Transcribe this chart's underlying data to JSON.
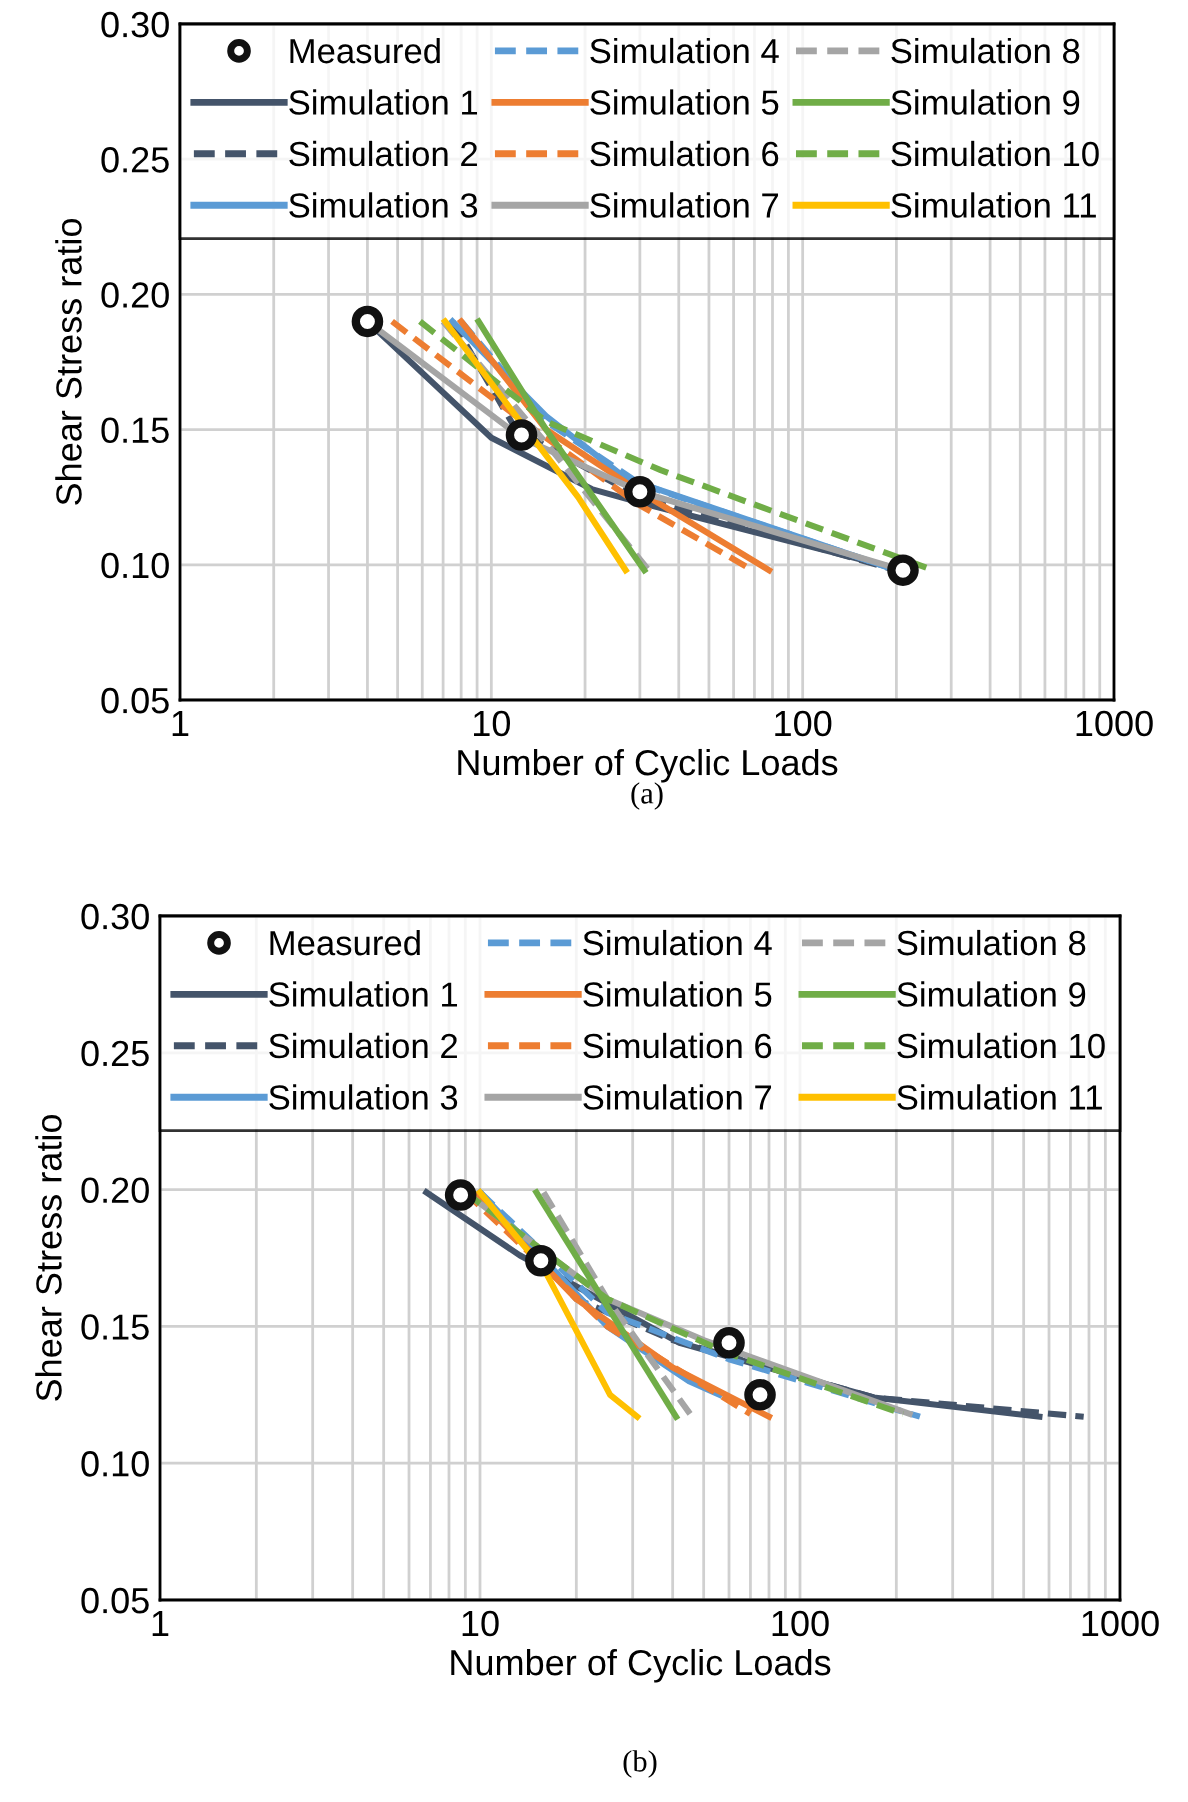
{
  "chart_data": [
    {
      "type": "line",
      "xlabel": "Number of Cyclic Loads",
      "ylabel": "Shear Stress ratio",
      "annotations": [
        "(a)"
      ],
      "log": "x",
      "grid": true,
      "legend": "top",
      "xlim": [
        1,
        1000
      ],
      "xticks": [
        1,
        10,
        100,
        1000
      ],
      "ylim": [
        0.05,
        0.3
      ],
      "yticks": [
        {
          "value": 0.05,
          "label": "0.05"
        },
        {
          "value": 0.1,
          "label": "0.10"
        },
        {
          "value": 0.15,
          "label": "0.15"
        },
        {
          "value": 0.2,
          "label": "0.20"
        },
        {
          "value": 0.25,
          "label": "0.25"
        },
        {
          "value": 0.3,
          "label": "0.30"
        }
      ],
      "series": [
        {
          "name": "Measured",
          "type": "scatter",
          "marker": "circle",
          "color": "#111111",
          "x": [
            4,
            12.5,
            30,
            210
          ],
          "values": [
            0.19,
            0.148,
            0.127,
            0.098
          ]
        },
        {
          "name": "Simulation 1",
          "color": "#44546a",
          "line_style": "solid",
          "x": [
            4,
            10,
            21,
            30,
            210
          ],
          "values": [
            0.19,
            0.147,
            0.128,
            0.123,
            0.098
          ]
        },
        {
          "name": "Simulation 2",
          "color": "#44546a",
          "line_style": "dashed",
          "x": [
            7.5,
            12,
            30,
            200
          ],
          "values": [
            0.19,
            0.15,
            0.125,
            0.098
          ]
        },
        {
          "name": "Simulation 3",
          "color": "#5b9bd5",
          "line_style": "solid",
          "x": [
            7.5,
            15,
            27,
            200
          ],
          "values": [
            0.19,
            0.155,
            0.132,
            0.098
          ]
        },
        {
          "name": "Simulation 4",
          "color": "#5b9bd5",
          "line_style": "dashed",
          "x": [
            8,
            15,
            30,
            200
          ],
          "values": [
            0.19,
            0.153,
            0.13,
            0.098
          ]
        },
        {
          "name": "Simulation 5",
          "color": "#ed7d31",
          "line_style": "solid",
          "x": [
            8,
            15,
            30,
            78
          ],
          "values": [
            0.19,
            0.15,
            0.127,
            0.098
          ]
        },
        {
          "name": "Simulation 6",
          "color": "#ed7d31",
          "line_style": "dashed",
          "x": [
            4.8,
            12,
            30,
            69
          ],
          "values": [
            0.19,
            0.155,
            0.122,
            0.098
          ]
        },
        {
          "name": "Simulation 7",
          "color": "#a5a5a5",
          "line_style": "solid",
          "x": [
            4,
            12.5,
            30,
            210
          ],
          "values": [
            0.19,
            0.147,
            0.127,
            0.098
          ]
        },
        {
          "name": "Simulation 8",
          "color": "#a5a5a5",
          "line_style": "dashed",
          "x": [
            7,
            15,
            32
          ],
          "values": [
            0.19,
            0.145,
            0.098
          ]
        },
        {
          "name": "Simulation 9",
          "color": "#70ad47",
          "line_style": "solid",
          "x": [
            9.1,
            15,
            31
          ],
          "values": [
            0.19,
            0.15,
            0.098
          ]
        },
        {
          "name": "Simulation 10",
          "color": "#70ad47",
          "line_style": "dashed",
          "x": [
            5.9,
            15,
            35,
            263
          ],
          "values": [
            0.19,
            0.153,
            0.135,
            0.098
          ]
        },
        {
          "name": "Simulation 11",
          "color": "#ffc000",
          "line_style": "solid",
          "x": [
            7.1,
            12,
            19,
            27
          ],
          "values": [
            0.19,
            0.155,
            0.125,
            0.098
          ]
        }
      ]
    },
    {
      "type": "line",
      "xlabel": "Number of Cyclic Loads",
      "ylabel": "Shear Stress ratio",
      "annotations": [
        "(b)"
      ],
      "log": "x",
      "grid": true,
      "legend": "top",
      "xlim": [
        1,
        1000
      ],
      "xticks": [
        1,
        10,
        100,
        1000
      ],
      "ylim": [
        0.05,
        0.3
      ],
      "yticks": [
        {
          "value": 0.05,
          "label": "0.05"
        },
        {
          "value": 0.1,
          "label": "0.10"
        },
        {
          "value": 0.15,
          "label": "0.15"
        },
        {
          "value": 0.2,
          "label": "0.20"
        },
        {
          "value": 0.25,
          "label": "0.25"
        },
        {
          "value": 0.3,
          "label": "0.30"
        }
      ],
      "series": [
        {
          "name": "Measured",
          "type": "scatter",
          "marker": "circle",
          "color": "#111111",
          "x": [
            8.7,
            15.5,
            60,
            75
          ],
          "values": [
            0.198,
            0.174,
            0.144,
            0.125
          ]
        },
        {
          "name": "Simulation 1",
          "color": "#44546a",
          "line_style": "solid",
          "x": [
            6.8,
            13.3,
            42,
            170,
            560
          ],
          "values": [
            0.199,
            0.176,
            0.144,
            0.124,
            0.117
          ]
        },
        {
          "name": "Simulation 2",
          "color": "#44546a",
          "line_style": "dashed",
          "x": [
            10,
            20,
            40,
            170,
            770
          ],
          "values": [
            0.199,
            0.16,
            0.145,
            0.124,
            0.117
          ]
        },
        {
          "name": "Simulation 3",
          "color": "#5b9bd5",
          "line_style": "solid",
          "x": [
            10,
            25,
            45,
            56
          ],
          "values": [
            0.199,
            0.15,
            0.13,
            0.125
          ]
        },
        {
          "name": "Simulation 4",
          "color": "#5b9bd5",
          "line_style": "dashed",
          "x": [
            10,
            25,
            60,
            237
          ],
          "values": [
            0.199,
            0.155,
            0.138,
            0.117
          ]
        },
        {
          "name": "Simulation 5",
          "color": "#ed7d31",
          "line_style": "solid",
          "x": [
            9.5,
            20,
            40,
            80
          ],
          "values": [
            0.199,
            0.16,
            0.135,
            0.117
          ]
        },
        {
          "name": "Simulation 6",
          "color": "#ed7d31",
          "line_style": "dashed",
          "x": [
            9,
            25,
            70
          ],
          "values": [
            0.199,
            0.15,
            0.118
          ]
        },
        {
          "name": "Simulation 7",
          "color": "#a5a5a5",
          "line_style": "solid",
          "x": [
            9,
            25,
            50,
            150,
            220
          ],
          "values": [
            0.199,
            0.16,
            0.145,
            0.125,
            0.118
          ]
        },
        {
          "name": "Simulation 8",
          "color": "#a5a5a5",
          "line_style": "dashed",
          "x": [
            15.8,
            25,
            46
          ],
          "values": [
            0.199,
            0.16,
            0.117
          ]
        },
        {
          "name": "Simulation 9",
          "color": "#70ad47",
          "line_style": "solid",
          "x": [
            15,
            41
          ],
          "values": [
            0.199,
            0.117
          ]
        },
        {
          "name": "Simulation 10",
          "color": "#70ad47",
          "line_style": "dashed",
          "x": [
            9,
            25,
            60,
            210
          ],
          "values": [
            0.199,
            0.16,
            0.14,
            0.118
          ]
        },
        {
          "name": "Simulation 11",
          "color": "#ffc000",
          "line_style": "solid",
          "x": [
            10,
            16,
            25.5,
            31
          ],
          "values": [
            0.199,
            0.17,
            0.125,
            0.117
          ]
        }
      ]
    }
  ]
}
